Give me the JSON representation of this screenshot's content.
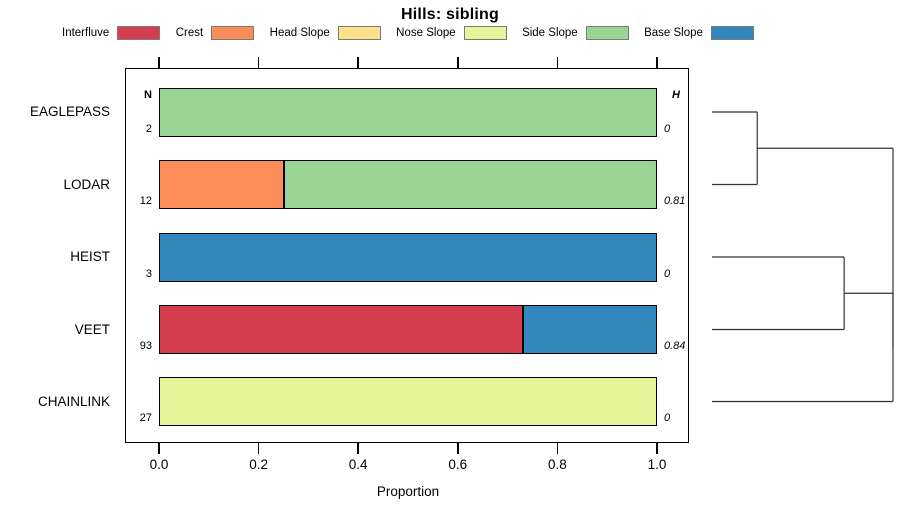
{
  "title": "Hills: sibling",
  "legend": {
    "items": [
      {
        "label": "Interfluve",
        "color": "#D53E4F"
      },
      {
        "label": "Crest",
        "color": "#FC8D59"
      },
      {
        "label": "Head Slope",
        "color": "#FEE08B"
      },
      {
        "label": "Nose Slope",
        "color": "#E6F598"
      },
      {
        "label": "Side Slope",
        "color": "#99D594"
      },
      {
        "label": "Base Slope",
        "color": "#3288BD"
      }
    ]
  },
  "chart_data": {
    "type": "bar",
    "subtype": "horizontal_stacked_proportion_with_dendrogram",
    "title": "Hills: sibling",
    "xlabel": "Proportion",
    "xlim": [
      0,
      1
    ],
    "xticks": [
      0,
      0.2,
      0.4,
      0.6,
      0.8,
      1.0
    ],
    "xtick_labels": [
      "0.0",
      "0.2",
      "0.4",
      "0.6",
      "0.8",
      "1.0"
    ],
    "grid": "off",
    "legend_position": "top",
    "col_headers": {
      "left": "N",
      "right": "H"
    },
    "categories": [
      "EAGLEPASS",
      "LODAR",
      "HEIST",
      "VEET",
      "CHAINLINK"
    ],
    "rows": [
      {
        "category": "EAGLEPASS",
        "n": "2",
        "h": "0",
        "segments": [
          {
            "class": "Side Slope",
            "value": 1.0
          }
        ]
      },
      {
        "category": "LODAR",
        "n": "12",
        "h": "0.81",
        "segments": [
          {
            "class": "Crest",
            "value": 0.25
          },
          {
            "class": "Side Slope",
            "value": 0.75
          }
        ]
      },
      {
        "category": "HEIST",
        "n": "3",
        "h": "0",
        "segments": [
          {
            "class": "Base Slope",
            "value": 1.0
          }
        ]
      },
      {
        "category": "VEET",
        "n": "93",
        "h": "0.84",
        "segments": [
          {
            "class": "Interfluve",
            "value": 0.73
          },
          {
            "class": "Base Slope",
            "value": 0.27
          }
        ]
      },
      {
        "category": "CHAINLINK",
        "n": "27",
        "h": "0",
        "segments": [
          {
            "class": "Nose Slope",
            "value": 1.0
          }
        ]
      }
    ],
    "class_colors": {
      "Interfluve": "#D53E4F",
      "Crest": "#FC8D59",
      "Head Slope": "#FEE08B",
      "Nose Slope": "#E6F598",
      "Side Slope": "#99D594",
      "Base Slope": "#3288BD"
    },
    "dendrogram": {
      "side": "right",
      "leaf_order": [
        "EAGLEPASS",
        "LODAR",
        "HEIST",
        "VEET",
        "CHAINLINK"
      ],
      "merges": [
        {
          "children": [
            [
              "leaf",
              0
            ],
            [
              "leaf",
              1
            ]
          ],
          "height": 0.25
        },
        {
          "children": [
            [
              "leaf",
              2
            ],
            [
              "leaf",
              3
            ]
          ],
          "height": 0.73
        },
        {
          "children": [
            [
              "merge",
              1
            ],
            [
              "leaf",
              4
            ]
          ],
          "height": 1.0
        },
        {
          "children": [
            [
              "merge",
              0
            ],
            [
              "merge",
              2
            ]
          ],
          "height": 1.0
        }
      ]
    }
  }
}
